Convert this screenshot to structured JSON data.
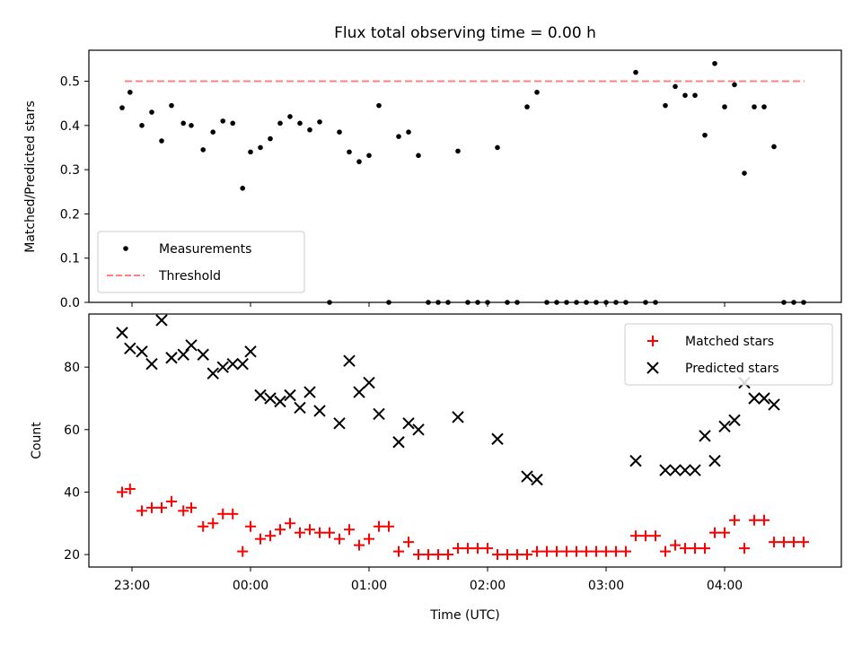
{
  "chart_data": [
    {
      "type": "scatter",
      "title": "Flux total observing time = 0.00 h",
      "xlabel": "",
      "ylabel": "Matched/Predicted stars",
      "ylim": [
        0,
        0.57
      ],
      "yticks": [
        "0.0",
        "0.1",
        "0.2",
        "0.3",
        "0.4",
        "0.5"
      ],
      "legend": "lower-left",
      "threshold": 0.5,
      "series": [
        {
          "name": "Measurements",
          "marker": "dot",
          "color": "#000000",
          "points": [
            [
              "22:55",
              0.44
            ],
            [
              "22:59",
              0.475
            ],
            [
              "23:05",
              0.4
            ],
            [
              "23:10",
              0.43
            ],
            [
              "23:15",
              0.365
            ],
            [
              "23:20",
              0.445
            ],
            [
              "23:26",
              0.405
            ],
            [
              "23:30",
              0.4
            ],
            [
              "23:36",
              0.345
            ],
            [
              "23:41",
              0.385
            ],
            [
              "23:46",
              0.41
            ],
            [
              "23:51",
              0.405
            ],
            [
              "23:56",
              0.258
            ],
            [
              "00:00",
              0.34
            ],
            [
              "00:05",
              0.35
            ],
            [
              "00:10",
              0.37
            ],
            [
              "00:15",
              0.405
            ],
            [
              "00:20",
              0.42
            ],
            [
              "00:25",
              0.405
            ],
            [
              "00:30",
              0.39
            ],
            [
              "00:35",
              0.408
            ],
            [
              "00:40",
              0.0
            ],
            [
              "00:45",
              0.385
            ],
            [
              "00:50",
              0.34
            ],
            [
              "00:55",
              0.318
            ],
            [
              "01:00",
              0.332
            ],
            [
              "01:05",
              0.445
            ],
            [
              "01:10",
              0.0
            ],
            [
              "01:15",
              0.375
            ],
            [
              "01:20",
              0.385
            ],
            [
              "01:25",
              0.332
            ],
            [
              "01:30",
              0.0
            ],
            [
              "01:35",
              0.0
            ],
            [
              "01:40",
              0.0
            ],
            [
              "01:45",
              0.342
            ],
            [
              "01:50",
              0.0
            ],
            [
              "01:55",
              0.0
            ],
            [
              "02:00",
              0.0
            ],
            [
              "02:05",
              0.35
            ],
            [
              "02:10",
              0.0
            ],
            [
              "02:15",
              0.0
            ],
            [
              "02:20",
              0.442
            ],
            [
              "02:25",
              0.475
            ],
            [
              "02:30",
              0.0
            ],
            [
              "02:35",
              0.0
            ],
            [
              "02:40",
              0.0
            ],
            [
              "02:45",
              0.0
            ],
            [
              "02:50",
              0.0
            ],
            [
              "02:55",
              0.0
            ],
            [
              "03:00",
              0.0
            ],
            [
              "03:05",
              0.0
            ],
            [
              "03:10",
              0.0
            ],
            [
              "03:15",
              0.52
            ],
            [
              "03:20",
              0.0
            ],
            [
              "03:25",
              0.0
            ],
            [
              "03:30",
              0.445
            ],
            [
              "03:35",
              0.488
            ],
            [
              "03:40",
              0.468
            ],
            [
              "03:45",
              0.468
            ],
            [
              "03:50",
              0.378
            ],
            [
              "03:55",
              0.54
            ],
            [
              "04:00",
              0.442
            ],
            [
              "04:05",
              0.492
            ],
            [
              "04:10",
              0.292
            ],
            [
              "04:15",
              0.442
            ],
            [
              "04:20",
              0.442
            ],
            [
              "04:25",
              0.352
            ],
            [
              "04:30",
              0.0
            ],
            [
              "04:35",
              0.0
            ],
            [
              "04:40",
              0.0
            ]
          ]
        },
        {
          "name": "Threshold",
          "marker": "dashed-line",
          "color": "#ff8080"
        }
      ]
    },
    {
      "type": "scatter",
      "title": "",
      "xlabel": "Time (UTC)",
      "ylabel": "Count",
      "ylim": [
        16,
        97
      ],
      "yticks": [
        "20",
        "40",
        "60",
        "80"
      ],
      "xticks": [
        "23:00",
        "00:00",
        "01:00",
        "02:00",
        "03:00",
        "04:00"
      ],
      "legend": "upper-right",
      "series": [
        {
          "name": "Matched stars",
          "marker": "plus",
          "color": "#ff0000",
          "points": [
            [
              "22:55",
              40
            ],
            [
              "22:59",
              41
            ],
            [
              "23:05",
              34
            ],
            [
              "23:10",
              35
            ],
            [
              "23:15",
              35
            ],
            [
              "23:20",
              37
            ],
            [
              "23:26",
              34
            ],
            [
              "23:30",
              35
            ],
            [
              "23:36",
              29
            ],
            [
              "23:41",
              30
            ],
            [
              "23:46",
              33
            ],
            [
              "23:51",
              33
            ],
            [
              "23:56",
              21
            ],
            [
              "00:00",
              29
            ],
            [
              "00:05",
              25
            ],
            [
              "00:10",
              26
            ],
            [
              "00:15",
              28
            ],
            [
              "00:20",
              30
            ],
            [
              "00:25",
              27
            ],
            [
              "00:30",
              28
            ],
            [
              "00:35",
              27
            ],
            [
              "00:40",
              27
            ],
            [
              "00:45",
              25
            ],
            [
              "00:50",
              28
            ],
            [
              "00:55",
              23
            ],
            [
              "01:00",
              25
            ],
            [
              "01:05",
              29
            ],
            [
              "01:10",
              29
            ],
            [
              "01:15",
              21
            ],
            [
              "01:20",
              24
            ],
            [
              "01:25",
              20
            ],
            [
              "01:30",
              20
            ],
            [
              "01:35",
              20
            ],
            [
              "01:40",
              20
            ],
            [
              "01:45",
              22
            ],
            [
              "01:50",
              22
            ],
            [
              "01:55",
              22
            ],
            [
              "02:00",
              22
            ],
            [
              "02:05",
              20
            ],
            [
              "02:10",
              20
            ],
            [
              "02:15",
              20
            ],
            [
              "02:20",
              20
            ],
            [
              "02:25",
              21
            ],
            [
              "02:30",
              21
            ],
            [
              "02:35",
              21
            ],
            [
              "02:40",
              21
            ],
            [
              "02:45",
              21
            ],
            [
              "02:50",
              21
            ],
            [
              "02:55",
              21
            ],
            [
              "03:00",
              21
            ],
            [
              "03:05",
              21
            ],
            [
              "03:10",
              21
            ],
            [
              "03:15",
              26
            ],
            [
              "03:20",
              26
            ],
            [
              "03:25",
              26
            ],
            [
              "03:30",
              21
            ],
            [
              "03:35",
              23
            ],
            [
              "03:40",
              22
            ],
            [
              "03:45",
              22
            ],
            [
              "03:50",
              22
            ],
            [
              "03:55",
              27
            ],
            [
              "04:00",
              27
            ],
            [
              "04:05",
              31
            ],
            [
              "04:10",
              22
            ],
            [
              "04:15",
              31
            ],
            [
              "04:20",
              31
            ],
            [
              "04:25",
              24
            ],
            [
              "04:30",
              24
            ],
            [
              "04:35",
              24
            ],
            [
              "04:40",
              24
            ]
          ]
        },
        {
          "name": "Predicted stars",
          "marker": "x",
          "color": "#000000",
          "points": [
            [
              "22:55",
              91
            ],
            [
              "22:59",
              86
            ],
            [
              "23:05",
              85
            ],
            [
              "23:10",
              81
            ],
            [
              "23:15",
              95
            ],
            [
              "23:20",
              83
            ],
            [
              "23:26",
              84
            ],
            [
              "23:30",
              87
            ],
            [
              "23:36",
              84
            ],
            [
              "23:41",
              78
            ],
            [
              "23:46",
              80
            ],
            [
              "23:51",
              81
            ],
            [
              "23:56",
              81
            ],
            [
              "00:00",
              85
            ],
            [
              "00:05",
              71
            ],
            [
              "00:10",
              70
            ],
            [
              "00:15",
              69
            ],
            [
              "00:20",
              71
            ],
            [
              "00:25",
              67
            ],
            [
              "00:30",
              72
            ],
            [
              "00:35",
              66
            ],
            [
              "00:45",
              62
            ],
            [
              "00:50",
              82
            ],
            [
              "00:55",
              72
            ],
            [
              "01:00",
              75
            ],
            [
              "01:05",
              65
            ],
            [
              "01:15",
              56
            ],
            [
              "01:20",
              62
            ],
            [
              "01:25",
              60
            ],
            [
              "01:45",
              64
            ],
            [
              "02:05",
              57
            ],
            [
              "02:20",
              45
            ],
            [
              "02:25",
              44
            ],
            [
              "03:15",
              50
            ],
            [
              "03:30",
              47
            ],
            [
              "03:35",
              47
            ],
            [
              "03:40",
              47
            ],
            [
              "03:45",
              47
            ],
            [
              "03:50",
              58
            ],
            [
              "03:55",
              50
            ],
            [
              "04:00",
              61
            ],
            [
              "04:05",
              63
            ],
            [
              "04:10",
              75
            ],
            [
              "04:15",
              70
            ],
            [
              "04:20",
              70
            ],
            [
              "04:25",
              68
            ]
          ]
        }
      ]
    }
  ]
}
